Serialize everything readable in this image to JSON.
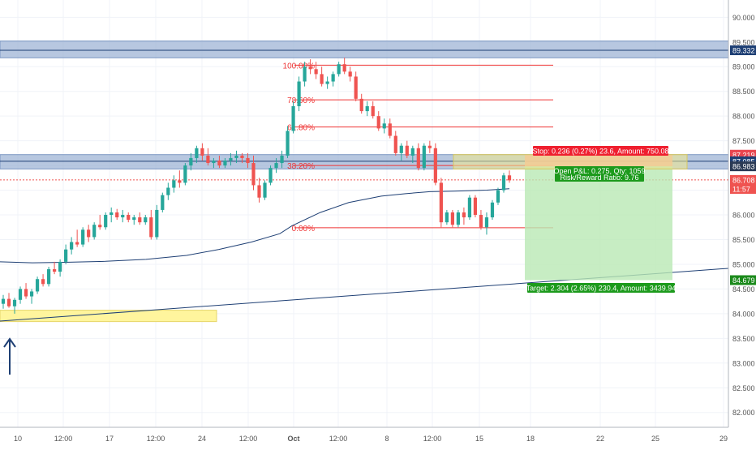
{
  "chart_data": {
    "type": "candlestick",
    "symbol_price_axis": {
      "ylim": [
        81.7,
        90.35
      ],
      "ticks": [
        "82.000",
        "82.500",
        "83.000",
        "83.500",
        "84.000",
        "84.500",
        "85.000",
        "85.500",
        "86.000",
        "86.500",
        "87.000",
        "87.500",
        "88.000",
        "88.500",
        "89.000",
        "89.500",
        "90.000"
      ],
      "tick_values": [
        82.0,
        82.5,
        83.0,
        83.5,
        84.0,
        84.5,
        85.0,
        85.5,
        86.0,
        86.5,
        87.0,
        87.5,
        88.0,
        88.5,
        89.0,
        89.5,
        90.0
      ]
    },
    "time_axis": {
      "labels": [
        "10",
        "12:00",
        "17",
        "12:00",
        "24",
        "12:00",
        "Oct",
        "12:00",
        "8",
        "12:00",
        "15",
        "18",
        "22",
        "25",
        "29"
      ],
      "bold": [
        "Oct"
      ]
    },
    "price_badges": [
      {
        "text": "89.332",
        "value": 89.332,
        "color": "#1e3f74"
      },
      {
        "text": "87.219",
        "value": 87.219,
        "color": "#e8454f"
      },
      {
        "text": "87.085",
        "value": 87.085,
        "color": "#1e3f74"
      },
      {
        "text": "86.983",
        "value": 86.983,
        "color": "#2b3a55"
      },
      {
        "text": "86.708",
        "value": 86.708,
        "color": "#ef5350"
      },
      {
        "text": "11:57",
        "value": 86.525,
        "color": "#ef5350"
      },
      {
        "text": "84.679",
        "value": 84.679,
        "color": "#1b8a1b"
      }
    ],
    "fibonacci": {
      "color": "#ef3535",
      "levels": [
        {
          "label": "100.00%",
          "value": 89.03
        },
        {
          "label": "78.60%",
          "value": 88.33
        },
        {
          "label": "61.80%",
          "value": 87.78
        },
        {
          "label": "38.20%",
          "value": 87.0
        },
        {
          "label": "0.00%",
          "value": 85.74
        }
      ]
    },
    "resistance_zones": [
      {
        "low": 89.18,
        "high": 89.52
      },
      {
        "low": 86.93,
        "high": 87.22
      }
    ],
    "support_zone": {
      "low": 83.84,
      "high": 84.07
    },
    "position": {
      "entry": 86.983,
      "stop_price": 87.219,
      "target_price": 84.679,
      "stop_label": "Stop: 0.236 (0.27%) 23.6, Amount: 750.08",
      "pnl_label": "Open P&L: 0.275, Qty: 1059",
      "rr_label": "Risk/Reward Ratio: 9.76",
      "target_label": "Target: 2.304 (2.65%) 230.4, Amount: 3439.94"
    },
    "current_price": 86.708,
    "colors": {
      "up": "#26a69a",
      "down": "#ef5350",
      "ma": "#1e3f74",
      "zone": "#9fb4d6",
      "support": "#fff59d",
      "target_fill": "#b9e8b4",
      "stop_fill": "#f6a89d"
    },
    "moving_average": [
      [
        0,
        85.05
      ],
      [
        40,
        85.03
      ],
      [
        80,
        85.04
      ],
      [
        130,
        85.06
      ],
      [
        180,
        85.1
      ],
      [
        230,
        85.18
      ],
      [
        270,
        85.3
      ],
      [
        310,
        85.45
      ],
      [
        345,
        85.62
      ],
      [
        360,
        85.78
      ],
      [
        395,
        86.05
      ],
      [
        430,
        86.25
      ],
      [
        470,
        86.38
      ],
      [
        500,
        86.43
      ],
      [
        530,
        86.47
      ],
      [
        560,
        86.48
      ],
      [
        600,
        86.5
      ],
      [
        628,
        86.53
      ]
    ],
    "trendline": {
      "x1": 0,
      "y1": 83.85,
      "x2": 900,
      "y2": 84.92
    },
    "candles": [
      [
        84.2,
        84.38,
        84.1,
        84.3
      ],
      [
        84.3,
        84.42,
        84.12,
        84.15
      ],
      [
        84.15,
        84.32,
        84.0,
        84.28
      ],
      [
        84.28,
        84.55,
        84.2,
        84.5
      ],
      [
        84.5,
        84.62,
        84.3,
        84.35
      ],
      [
        84.35,
        84.5,
        84.2,
        84.45
      ],
      [
        84.45,
        84.75,
        84.4,
        84.7
      ],
      [
        84.7,
        84.8,
        84.55,
        84.6
      ],
      [
        84.6,
        84.95,
        84.55,
        84.9
      ],
      [
        84.9,
        85.05,
        84.8,
        84.85
      ],
      [
        84.85,
        85.1,
        84.75,
        85.05
      ],
      [
        85.05,
        85.4,
        85.0,
        85.3
      ],
      [
        85.3,
        85.55,
        85.2,
        85.45
      ],
      [
        85.45,
        85.7,
        85.35,
        85.4
      ],
      [
        85.4,
        85.75,
        85.35,
        85.7
      ],
      [
        85.7,
        85.8,
        85.45,
        85.55
      ],
      [
        85.55,
        85.85,
        85.5,
        85.8
      ],
      [
        85.8,
        86.0,
        85.7,
        85.75
      ],
      [
        85.75,
        86.05,
        85.7,
        86.0
      ],
      [
        86.0,
        86.15,
        85.85,
        86.05
      ],
      [
        86.05,
        86.12,
        85.9,
        85.95
      ],
      [
        85.95,
        86.1,
        85.85,
        86.0
      ],
      [
        86.0,
        86.05,
        85.85,
        85.9
      ],
      [
        85.9,
        86.0,
        85.8,
        85.95
      ],
      [
        85.95,
        86.05,
        85.8,
        85.85
      ],
      [
        85.85,
        86.0,
        85.8,
        85.95
      ],
      [
        85.95,
        86.1,
        85.5,
        85.55
      ],
      [
        85.55,
        86.2,
        85.5,
        86.1
      ],
      [
        86.1,
        86.45,
        86.05,
        86.4
      ],
      [
        86.4,
        86.65,
        86.3,
        86.55
      ],
      [
        86.55,
        86.8,
        86.45,
        86.7
      ],
      [
        86.7,
        86.9,
        86.55,
        86.65
      ],
      [
        86.65,
        87.05,
        86.6,
        87.0
      ],
      [
        87.0,
        87.25,
        86.9,
        87.15
      ],
      [
        87.15,
        87.4,
        87.05,
        87.35
      ],
      [
        87.35,
        87.45,
        87.1,
        87.2
      ],
      [
        87.2,
        87.35,
        87.0,
        87.05
      ],
      [
        87.05,
        87.15,
        86.95,
        87.1
      ],
      [
        87.1,
        87.2,
        86.95,
        87.0
      ],
      [
        87.0,
        87.15,
        86.95,
        87.1
      ],
      [
        87.1,
        87.25,
        87.0,
        87.15
      ],
      [
        87.15,
        87.3,
        87.05,
        87.2
      ],
      [
        87.2,
        87.25,
        87.05,
        87.15
      ],
      [
        87.15,
        87.25,
        86.95,
        87.05
      ],
      [
        87.05,
        87.2,
        86.5,
        86.6
      ],
      [
        86.6,
        86.75,
        86.25,
        86.35
      ],
      [
        86.35,
        86.7,
        86.3,
        86.65
      ],
      [
        86.65,
        87.0,
        86.6,
        86.95
      ],
      [
        86.95,
        87.15,
        86.85,
        87.05
      ],
      [
        87.05,
        87.3,
        86.95,
        87.2
      ],
      [
        87.2,
        87.8,
        87.15,
        87.7
      ],
      [
        87.7,
        88.3,
        87.65,
        88.2
      ],
      [
        88.2,
        88.8,
        88.1,
        88.7
      ],
      [
        88.7,
        89.1,
        88.6,
        89.0
      ],
      [
        89.0,
        89.15,
        88.85,
        88.95
      ],
      [
        88.95,
        89.1,
        88.75,
        88.85
      ],
      [
        88.85,
        89.0,
        88.6,
        88.65
      ],
      [
        88.65,
        88.8,
        88.55,
        88.7
      ],
      [
        88.7,
        88.9,
        88.6,
        88.85
      ],
      [
        88.85,
        89.1,
        88.8,
        89.05
      ],
      [
        89.05,
        89.18,
        88.85,
        88.9
      ],
      [
        88.9,
        89.0,
        88.7,
        88.8
      ],
      [
        88.8,
        88.9,
        88.3,
        88.35
      ],
      [
        88.35,
        88.45,
        88.05,
        88.1
      ],
      [
        88.1,
        88.3,
        88.0,
        88.2
      ],
      [
        88.2,
        88.3,
        87.95,
        88.0
      ],
      [
        88.0,
        88.1,
        87.7,
        87.75
      ],
      [
        87.75,
        87.95,
        87.65,
        87.85
      ],
      [
        87.85,
        87.95,
        87.55,
        87.6
      ],
      [
        87.6,
        87.7,
        87.2,
        87.25
      ],
      [
        87.25,
        87.45,
        87.1,
        87.4
      ],
      [
        87.4,
        87.5,
        87.15,
        87.2
      ],
      [
        87.2,
        87.4,
        87.05,
        87.35
      ],
      [
        87.35,
        87.45,
        86.9,
        86.95
      ],
      [
        86.95,
        87.45,
        86.9,
        87.4
      ],
      [
        87.4,
        87.5,
        87.25,
        87.35
      ],
      [
        87.35,
        87.45,
        86.6,
        86.65
      ],
      [
        86.65,
        86.75,
        85.75,
        85.85
      ],
      [
        85.85,
        86.1,
        85.8,
        86.05
      ],
      [
        86.05,
        86.1,
        85.75,
        85.8
      ],
      [
        85.8,
        86.1,
        85.75,
        86.05
      ],
      [
        86.05,
        86.15,
        85.8,
        85.95
      ],
      [
        85.95,
        86.4,
        85.9,
        86.35
      ],
      [
        86.35,
        86.4,
        85.95,
        86.0
      ],
      [
        86.0,
        86.1,
        85.7,
        85.75
      ],
      [
        85.75,
        86.05,
        85.6,
        85.95
      ],
      [
        85.95,
        86.3,
        85.9,
        86.25
      ],
      [
        86.25,
        86.55,
        86.2,
        86.5
      ],
      [
        86.5,
        86.85,
        86.45,
        86.8
      ],
      [
        86.8,
        86.9,
        86.65,
        86.7
      ]
    ]
  }
}
